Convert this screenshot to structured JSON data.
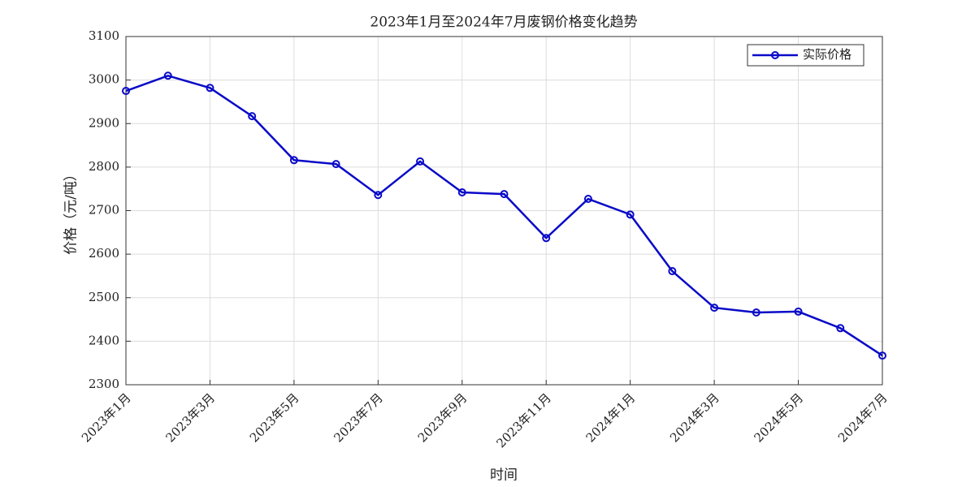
{
  "chart_data": {
    "type": "line",
    "title": "2023年1月至2024年7月废钢价格变化趋势",
    "x_label": "时间",
    "y_label": "价格（元/吨）",
    "categories": [
      "2023年1月",
      null,
      "2023年3月",
      null,
      "2023年5月",
      null,
      "2023年7月",
      null,
      "2023年9月",
      null,
      "2023年11月",
      null,
      "2024年1月",
      null,
      "2024年3月",
      null,
      "2024年5月",
      null,
      "2024年7月"
    ],
    "series": [
      {
        "name": "实际价格",
        "color": "#0a0ac8",
        "values": [
          2975,
          3010,
          2982,
          2917,
          2816,
          2807,
          2736,
          2813,
          2742,
          2738,
          2637,
          2727,
          2691,
          2561,
          2477,
          2466,
          2468,
          2430,
          2367
        ]
      }
    ],
    "ylim": [
      2300,
      3100
    ],
    "yticks": [
      2300,
      2400,
      2500,
      2600,
      2700,
      2800,
      2900,
      3000,
      3100
    ],
    "grid": true,
    "legend": "upper right"
  }
}
